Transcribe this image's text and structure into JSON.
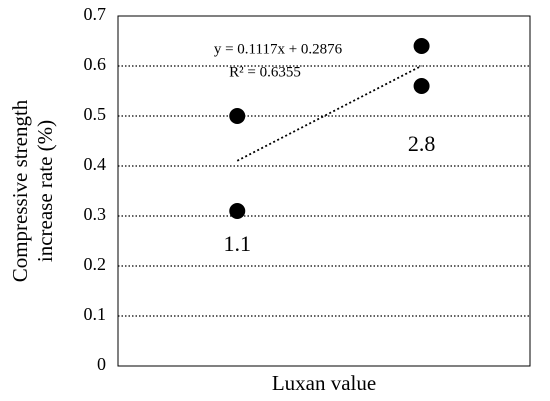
{
  "chart_data": {
    "type": "scatter",
    "x_label": "Luxan value",
    "y_label": [
      "Compressive strength",
      "increase rate (%)"
    ],
    "x": [
      1.1,
      1.1,
      2.8,
      2.8
    ],
    "values": [
      0.5,
      0.31,
      0.64,
      0.56
    ],
    "color": "#000000",
    "xlim": [
      0,
      3.8
    ],
    "ylim": [
      0,
      0.7
    ],
    "yticks": [
      0,
      0.1,
      0.2,
      0.3,
      0.4,
      0.5,
      0.6,
      0.7
    ],
    "grid": true,
    "annotations": [
      {
        "text": "1.1",
        "x": 1.1,
        "y": 0.24
      },
      {
        "text": "2.8",
        "x": 2.8,
        "y": 0.44
      }
    ],
    "trendline": {
      "slope": 0.1117,
      "intercept": 0.2876,
      "equation": "y = 0.1117x + 0.2876",
      "r2_label": "R² = 0.6355"
    }
  }
}
